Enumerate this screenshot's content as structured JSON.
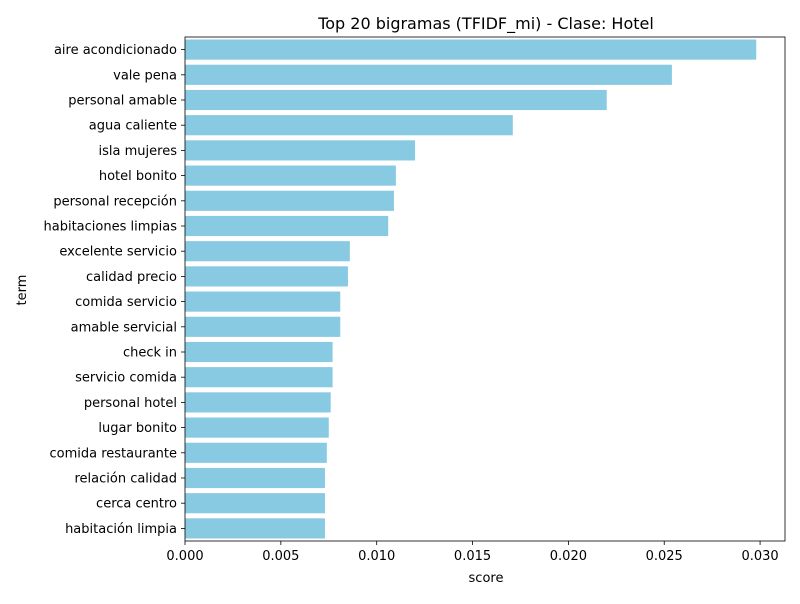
{
  "chart_data": {
    "type": "bar",
    "orientation": "horizontal",
    "title": "Top 20 bigramas (TFIDF_mi) - Clase: Hotel",
    "xlabel": "score",
    "ylabel": "term",
    "xlim": [
      0,
      0.0313
    ],
    "x_ticks": [
      0.0,
      0.005,
      0.01,
      0.015,
      0.02,
      0.025,
      0.03
    ],
    "x_tick_labels": [
      "0.000",
      "0.005",
      "0.010",
      "0.015",
      "0.020",
      "0.025",
      "0.030"
    ],
    "grid": false,
    "bar_color": "#89CAE3",
    "categories": [
      "aire acondicionado",
      "vale pena",
      "personal amable",
      "agua caliente",
      "isla mujeres",
      "hotel bonito",
      "personal recepción",
      "habitaciones limpias",
      "excelente servicio",
      "calidad precio",
      "comida servicio",
      "amable servicial",
      "check in",
      "servicio comida",
      "personal hotel",
      "lugar bonito",
      "comida restaurante",
      "relación calidad",
      "cerca centro",
      "habitación limpia"
    ],
    "values": [
      0.0298,
      0.0254,
      0.022,
      0.0171,
      0.012,
      0.011,
      0.0109,
      0.0106,
      0.0086,
      0.0085,
      0.0081,
      0.0081,
      0.0077,
      0.0077,
      0.0076,
      0.0075,
      0.0074,
      0.0073,
      0.0073,
      0.0073
    ]
  }
}
